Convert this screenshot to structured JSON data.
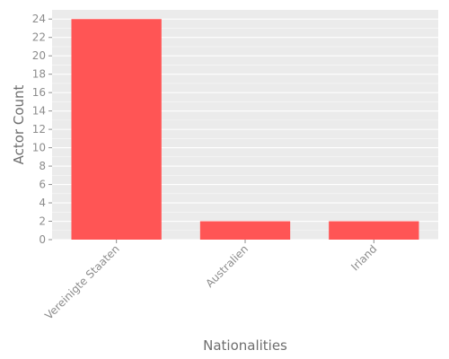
{
  "chart_data": {
    "type": "bar",
    "title": "",
    "xlabel": "Nationalities",
    "ylabel": "Actor Count",
    "categories": [
      "Vereinigte Staaten",
      "Australien",
      "Irland"
    ],
    "values": [
      24,
      2,
      2
    ],
    "ylim": [
      0,
      25
    ],
    "yticks": [
      0,
      2,
      4,
      6,
      8,
      10,
      12,
      14,
      16,
      18,
      20,
      22,
      24
    ],
    "grid": true,
    "legend": "none"
  },
  "colors": {
    "bar": "#ff5555",
    "panel_background": "#ebebeb",
    "grid": "#ffffff",
    "tick_text": "#8c8c8c",
    "axis_title_text": "#6e6e6e"
  }
}
